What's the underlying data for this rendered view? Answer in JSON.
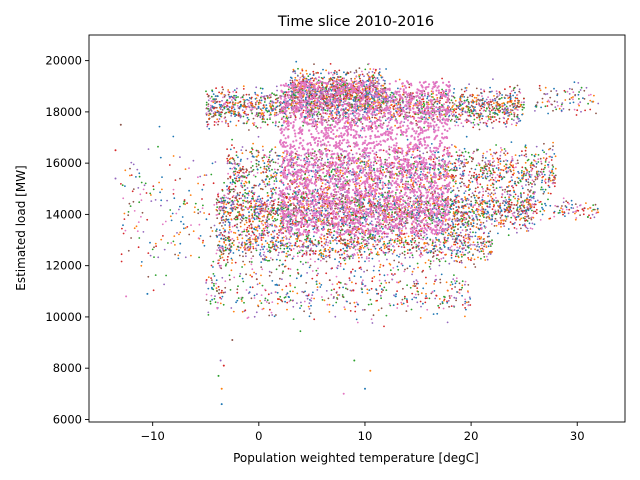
{
  "chart_data": {
    "type": "scatter",
    "title": "Time slice 2010-2016",
    "xlabel": "Population weighted temperature [degC]",
    "ylabel": "Estimated load [MW]",
    "xlim": [
      -16,
      34.5
    ],
    "ylim": [
      5900,
      21000
    ],
    "xticks": [
      -10,
      0,
      10,
      20,
      30
    ],
    "yticks": [
      6000,
      8000,
      10000,
      12000,
      14000,
      16000,
      18000,
      20000
    ],
    "xtick_labels": [
      "−10",
      "0",
      "10",
      "20",
      "30"
    ],
    "ytick_labels": [
      "6000",
      "8000",
      "10000",
      "12000",
      "14000",
      "16000",
      "18000",
      "20000"
    ],
    "grid": false,
    "legend": false,
    "marker": "dot",
    "series_colors": [
      "#1f77b4",
      "#ff7f0e",
      "#2ca02c",
      "#d62728",
      "#9467bd",
      "#8c564b",
      "#e377c2"
    ],
    "clusters": [
      {
        "x_range": [
          -5,
          25
        ],
        "y_center": 18200,
        "y_spread": 600,
        "weight": 0.22
      },
      {
        "x_range": [
          3,
          12
        ],
        "y_center": 18900,
        "y_spread": 600,
        "weight": 0.1
      },
      {
        "x_range": [
          -3,
          28
        ],
        "y_center": 15700,
        "y_spread": 800,
        "weight": 0.18
      },
      {
        "x_range": [
          -4,
          26
        ],
        "y_center": 14200,
        "y_spread": 700,
        "weight": 0.25
      },
      {
        "x_range": [
          -4,
          22
        ],
        "y_center": 12900,
        "y_spread": 700,
        "weight": 0.15
      },
      {
        "x_range": [
          -5,
          20
        ],
        "y_center": 11000,
        "y_spread": 900,
        "weight": 0.06
      },
      {
        "x_range": [
          -13,
          -4
        ],
        "y_center": 14000,
        "y_spread": 2000,
        "weight": 0.02
      },
      {
        "x_range": [
          26,
          32
        ],
        "y_center": 18500,
        "y_spread": 500,
        "weight": 0.01
      },
      {
        "x_range": [
          26,
          32
        ],
        "y_center": 14200,
        "y_spread": 300,
        "weight": 0.01
      }
    ],
    "outliers": [
      {
        "x": -3.5,
        "y": 6600
      },
      {
        "x": -3.5,
        "y": 7200
      },
      {
        "x": -3.8,
        "y": 7700
      },
      {
        "x": -3.3,
        "y": 8100
      },
      {
        "x": -3.6,
        "y": 8300
      },
      {
        "x": -2.5,
        "y": 9100
      },
      {
        "x": 8.0,
        "y": 7000
      },
      {
        "x": 10.0,
        "y": 7200
      },
      {
        "x": 10.5,
        "y": 7900
      },
      {
        "x": 9.0,
        "y": 8300
      },
      {
        "x": -13.5,
        "y": 16500
      },
      {
        "x": -13.5,
        "y": 15400
      },
      {
        "x": -13.0,
        "y": 17500
      },
      {
        "x": -12.5,
        "y": 10800
      },
      {
        "x": -10.5,
        "y": 10900
      },
      {
        "x": 31.5,
        "y": 18400
      },
      {
        "x": 31.0,
        "y": 13900
      },
      {
        "x": 30.5,
        "y": 14200
      }
    ]
  }
}
